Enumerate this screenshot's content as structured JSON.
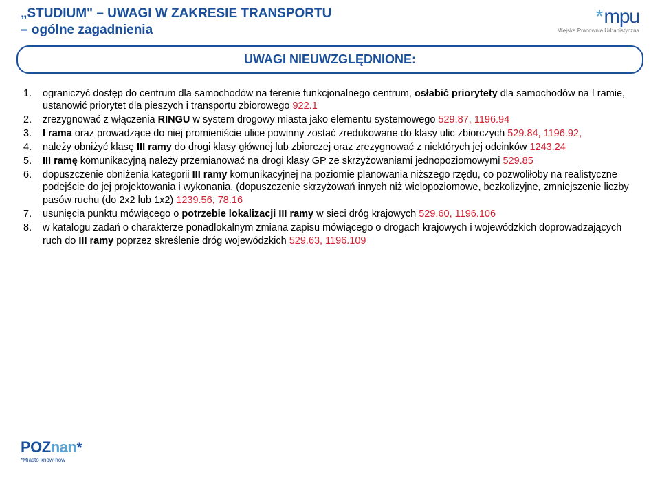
{
  "colors": {
    "blue": "#1a4f9c",
    "lightblue": "#5aa4d6",
    "red": "#d02030",
    "black": "#000000",
    "gray": "#6d6d6d"
  },
  "header": {
    "title_line1": "„STUDIUM\" – UWAGI W ZAKRESIE TRANSPORTU",
    "title_line2": "– ogólne zagadnienia"
  },
  "logo": {
    "asterisk": "*",
    "text": "mpu",
    "sub": "Miejska Pracownia Urbanistyczna"
  },
  "subtitle": "UWAGI NIEUWZGLĘDNIONE:",
  "items": [
    {
      "pre": "ograniczyć dostęp do centrum dla samochodów na terenie funkcjonalnego centrum, ",
      "bold": "osłabić priorytety",
      "post": " dla samochodów na I ramie, ustanowić priorytet dla pieszych i transportu zbiorowego ",
      "ref": "922.1"
    },
    {
      "pre": "zrezygnować z włączenia ",
      "bold": " RINGU",
      "post": " w system drogowy miasta jako elementu systemowego ",
      "ref": "529.87, 1196.94"
    },
    {
      "bold": "I rama",
      "post": " oraz prowadzące do niej promieniście ulice powinny zostać zredukowane do klasy ulic zbiorczych ",
      "ref": "529.84, 1196.92,"
    },
    {
      "pre": "należy obniżyć klasę ",
      "bold": "III ramy",
      "post": " do drogi klasy głównej lub zbiorczej oraz zrezygnować z niektórych jej odcinków ",
      "ref": "1243.24"
    },
    {
      "bold": "III ramę",
      "post": " komunikacyjną należy przemianować na drogi klasy GP ze skrzyżowaniami jednopoziomowymi ",
      "ref": "529.85"
    },
    {
      "pre": "dopuszczenie obniżenia kategorii ",
      "bold": "III ramy",
      "post": " komunikacyjnej na poziomie planowania niższego rzędu, co pozwoliłoby na realistyczne podejście do jej projektowania i wykonania. (dopuszczenie skrzyżowań innych niż wielopoziomowe, bezkolizyjne, zmniejszenie liczby pasów ruchu (do 2x2 lub 1x2) ",
      "ref": "1239.56, 78.16"
    },
    {
      "pre": "usunięcia punktu mówiącego o ",
      "bold": " potrzebie lokalizacji III ramy",
      "post": " w sieci dróg krajowych ",
      "ref": "529.60, 1196.106"
    },
    {
      "pre": "w katalogu zadań o charakterze ponadlokalnym zmiana zapisu mówiącego o drogach krajowych i wojewódzkich doprowadzających ruch do ",
      "bold": "III ramy",
      "post": " poprzez skreślenie dróg wojewódzkich ",
      "ref": "529.63, 1196.109"
    }
  ],
  "footer": {
    "brand_pre": "POZ",
    "brand_post": "nan",
    "star": "*",
    "sub": "Miasto know-how"
  }
}
